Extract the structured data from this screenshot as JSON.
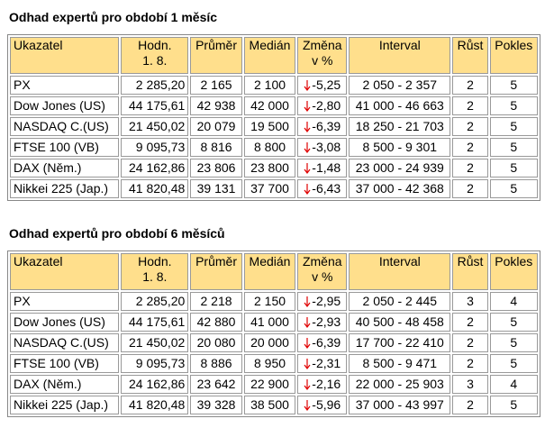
{
  "tables": [
    {
      "title": "Odhad expertů pro období 1 měsíc",
      "header": [
        "Ukazatel",
        "Hodn.\n1. 8.",
        "Průměr",
        "Medián",
        "Změna\nv %",
        "Interval",
        "Růst",
        "Pokles"
      ],
      "rows": [
        [
          "PX",
          "2 285,20",
          "2 165",
          "2 100",
          "-5,25",
          "2 050 - 2 357",
          "2",
          "5"
        ],
        [
          "Dow Jones (US)",
          "44 175,61",
          "42 938",
          "42 000",
          "-2,80",
          "41 000 - 46 663",
          "2",
          "5"
        ],
        [
          "NASDAQ C.(US)",
          "21 450,02",
          "20 079",
          "19 500",
          "-6,39",
          "18 250 - 21 703",
          "2",
          "5"
        ],
        [
          "FTSE 100 (VB)",
          "9 095,73",
          "8 816",
          "8 800",
          "-3,08",
          "8 500 - 9 301",
          "2",
          "5"
        ],
        [
          "DAX (Něm.)",
          "24 162,86",
          "23 806",
          "23 800",
          "-1,48",
          "23 000 - 24 939",
          "2",
          "5"
        ],
        [
          "Nikkei 225 (Jap.)",
          "41 820,48",
          "39 131",
          "37 700",
          "-6,43",
          "37 000 - 42 368",
          "2",
          "5"
        ]
      ]
    },
    {
      "title": "Odhad expertů pro období 6 měsíců",
      "header": [
        "Ukazatel",
        "Hodn.\n1. 8.",
        "Průměr",
        "Medián",
        "Změna\nv %",
        "Interval",
        "Růst",
        "Pokles"
      ],
      "rows": [
        [
          "PX",
          "2 285,20",
          "2 218",
          "2 150",
          "-2,95",
          "2 050 - 2 445",
          "3",
          "4"
        ],
        [
          "Dow Jones (US)",
          "44 175,61",
          "42 880",
          "41 000",
          "-2,93",
          "40 500 - 48 458",
          "2",
          "5"
        ],
        [
          "NASDAQ C.(US)",
          "21 450,02",
          "20 080",
          "20 000",
          "-6,39",
          "17 700 - 22 410",
          "2",
          "5"
        ],
        [
          "FTSE 100 (VB)",
          "9 095,73",
          "8 886",
          "8 950",
          "-2,31",
          "8 500 - 9 471",
          "2",
          "5"
        ],
        [
          "DAX (Něm.)",
          "24 162,86",
          "23 642",
          "22 900",
          "-2,16",
          "22 000 - 25 903",
          "3",
          "4"
        ],
        [
          "Nikkei 225 (Jap.)",
          "41 820,48",
          "39 328",
          "38 500",
          "-5,96",
          "37 000 - 43 997",
          "2",
          "5"
        ]
      ]
    }
  ]
}
